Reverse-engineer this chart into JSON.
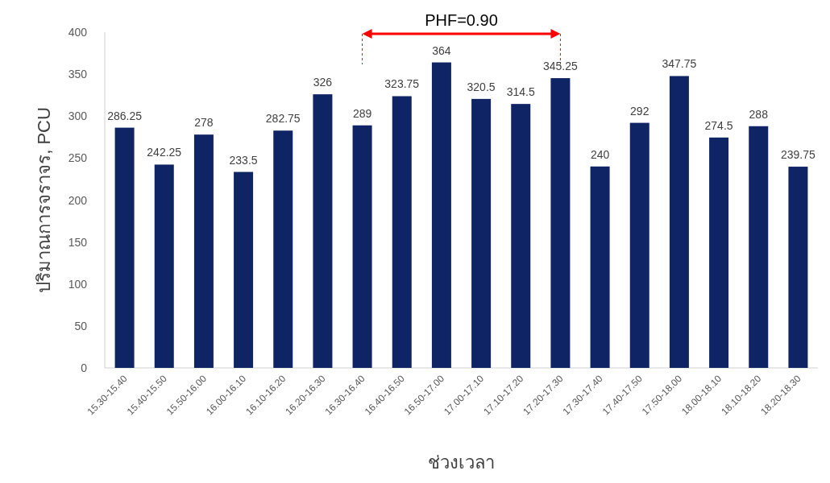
{
  "chart_data": {
    "type": "bar",
    "ylabel": "ปริมาณการจราจร, PCU",
    "xlabel": "ช่วงเวลา",
    "categories": [
      "15.30-15.40",
      "15.40-15.50",
      "15.50-16.00",
      "16.00-16.10",
      "16.10-16.20",
      "16.20-16.30",
      "16.30-16.40",
      "16.40-16.50",
      "16.50-17.00",
      "17.00-17.10",
      "17.10-17.20",
      "17.20-17.30",
      "17.30-17.40",
      "17.40-17.50",
      "17.50-18.00",
      "18.00-18.10",
      "18.10-18.20",
      "18.20-18.30"
    ],
    "values": [
      286.25,
      242.25,
      278,
      233.5,
      282.75,
      326,
      289,
      323.75,
      364,
      320.5,
      314.5,
      345.25,
      240,
      292,
      347.75,
      274.5,
      288,
      239.75
    ],
    "color": "#0f2464",
    "ylim": [
      0,
      400
    ],
    "yticks": [
      0,
      50,
      100,
      150,
      200,
      250,
      300,
      350,
      400
    ],
    "grid": false,
    "data_labels": true,
    "annotations": [
      "PHF=0.90"
    ],
    "ref_lines": [
      {
        "axis": "x",
        "value": "16.30-16.40",
        "color": "#ff0000",
        "line_style": "dashed"
      },
      {
        "axis": "x",
        "value": "17.20-17.30",
        "color": "#ff0000",
        "line_style": "dashed"
      }
    ]
  }
}
